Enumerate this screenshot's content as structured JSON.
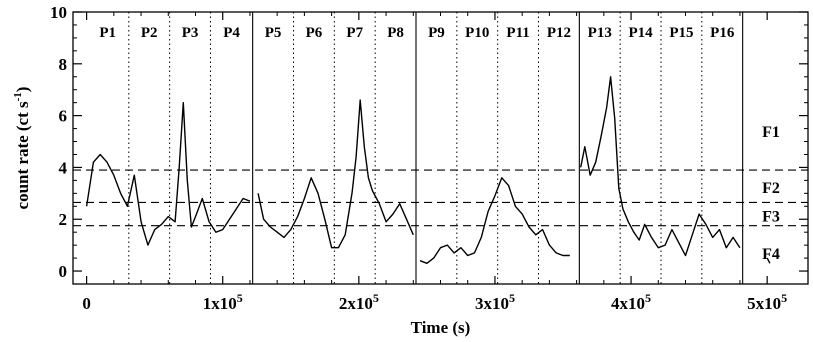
{
  "chart_data": {
    "type": "line",
    "xlabel": "Time (s)",
    "ylabel_main": "count rate (ct s",
    "ylabel_sup": "-1",
    "ylabel_close": ")",
    "xlim": [
      -10000,
      530000
    ],
    "ylim": [
      -0.5,
      10
    ],
    "x_ticks": [
      {
        "value": 0,
        "mant": "0",
        "exp": ""
      },
      {
        "value": 100000,
        "mant": "1x10",
        "exp": "5"
      },
      {
        "value": 200000,
        "mant": "2x10",
        "exp": "5"
      },
      {
        "value": 300000,
        "mant": "3x10",
        "exp": "5"
      },
      {
        "value": 400000,
        "mant": "4x10",
        "exp": "5"
      },
      {
        "value": 500000,
        "mant": "5x10",
        "exp": "5"
      }
    ],
    "y_ticks": [
      {
        "value": 0,
        "label": "0"
      },
      {
        "value": 2,
        "label": "2"
      },
      {
        "value": 4,
        "label": "4"
      },
      {
        "value": 6,
        "label": "6"
      },
      {
        "value": 8,
        "label": "8"
      },
      {
        "value": 10,
        "label": "10"
      }
    ],
    "flux_levels": [
      3.9,
      2.65,
      1.75
    ],
    "flux_labels": [
      {
        "label": "F1",
        "y": 5.4
      },
      {
        "label": "F2",
        "y": 3.25
      },
      {
        "label": "F3",
        "y": 2.15
      },
      {
        "label": "F4",
        "y": 0.7
      }
    ],
    "orbit_boundaries": [
      122000,
      242000,
      362000,
      482000
    ],
    "period_boundaries": [
      31000,
      61000,
      91000,
      152000,
      182000,
      212000,
      272000,
      302000,
      332000,
      392000,
      422000,
      452000
    ],
    "periods": [
      "P1",
      "P2",
      "P3",
      "P4",
      "P5",
      "P6",
      "P7",
      "P8",
      "P9",
      "P10",
      "P11",
      "P12",
      "P13",
      "P14",
      "P15",
      "P16"
    ],
    "series": [
      {
        "segments": [
          {
            "x": [
              0,
              5000,
              10000,
              15000,
              20000,
              25000,
              30000,
              35000,
              40000,
              45000,
              50000,
              55000,
              60000,
              65000,
              68000,
              71000,
              74000,
              77000,
              80000,
              85000,
              90000,
              95000,
              100000,
              105000,
              110000,
              115000,
              120000
            ],
            "y": [
              2.5,
              4.2,
              4.5,
              4.2,
              3.7,
              3.0,
              2.5,
              3.7,
              1.9,
              1.0,
              1.6,
              1.8,
              2.1,
              1.9,
              4.0,
              6.5,
              3.5,
              1.7,
              2.1,
              2.8,
              1.9,
              1.5,
              1.6,
              2.0,
              2.4,
              2.8,
              2.7
            ]
          },
          {
            "x": [
              126000,
              130000,
              135000,
              140000,
              145000,
              150000,
              155000,
              160000,
              165000,
              170000,
              175000,
              180000,
              185000,
              190000,
              195000,
              198000,
              201000,
              204000,
              207000,
              210000,
              215000,
              220000,
              225000,
              230000,
              235000,
              240000
            ],
            "y": [
              3.0,
              2.0,
              1.7,
              1.5,
              1.3,
              1.6,
              2.1,
              2.8,
              3.6,
              3.0,
              2.0,
              0.9,
              0.9,
              1.4,
              3.0,
              4.4,
              6.6,
              4.8,
              3.6,
              3.1,
              2.6,
              1.9,
              2.2,
              2.6,
              2.0,
              1.4
            ]
          },
          {
            "x": [
              245000,
              250000,
              255000,
              260000,
              265000,
              270000,
              275000,
              280000,
              285000,
              290000,
              295000,
              300000,
              305000,
              310000,
              315000,
              320000,
              325000,
              330000,
              335000,
              340000,
              345000,
              350000,
              355000
            ],
            "y": [
              0.4,
              0.3,
              0.5,
              0.9,
              1.0,
              0.7,
              0.9,
              0.6,
              0.7,
              1.3,
              2.3,
              2.9,
              3.6,
              3.3,
              2.5,
              2.2,
              1.7,
              1.4,
              1.6,
              1.0,
              0.7,
              0.6,
              0.6
            ]
          },
          {
            "x": [
              363000,
              366000,
              370000,
              374000,
              378000,
              382000,
              385000,
              388000,
              391000,
              394000,
              398000,
              402000,
              406000,
              410000,
              415000,
              420000,
              425000,
              430000,
              435000,
              440000,
              445000,
              450000,
              455000,
              460000,
              465000,
              470000,
              475000,
              480000
            ],
            "y": [
              4.0,
              4.8,
              3.7,
              4.2,
              5.2,
              6.3,
              7.5,
              5.9,
              3.2,
              2.4,
              1.9,
              1.5,
              1.2,
              1.8,
              1.3,
              0.9,
              1.0,
              1.6,
              1.1,
              0.6,
              1.4,
              2.2,
              1.8,
              1.3,
              1.6,
              0.9,
              1.3,
              0.9
            ]
          },
          {
            "x": [
              500000,
              502000
            ],
            "y": [
              0.5,
              0.3
            ]
          }
        ]
      }
    ]
  }
}
